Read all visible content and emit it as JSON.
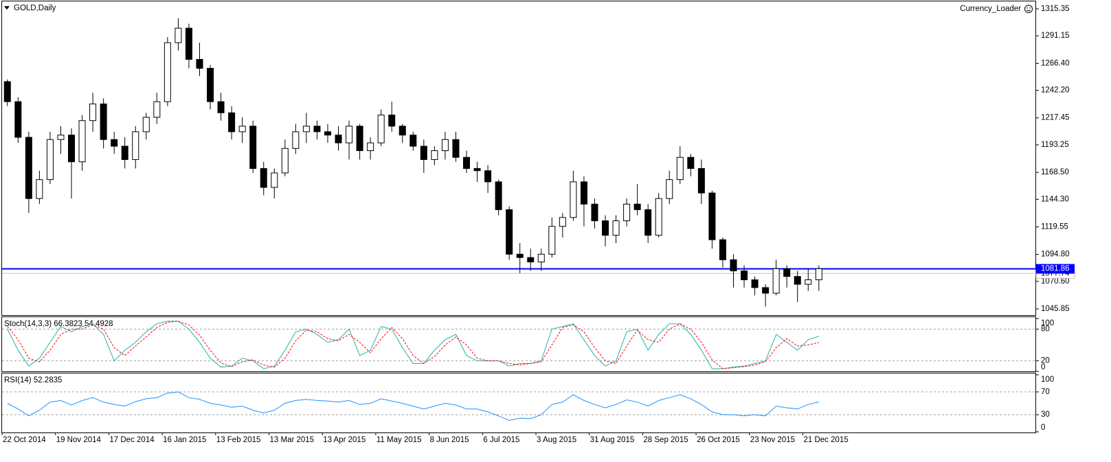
{
  "chart_data": [
    {
      "type": "candlestick",
      "title": "GOLD,Daily",
      "indicator_label": "Currency_Loader",
      "categories": [
        "22 Oct 2014",
        null,
        null,
        null,
        null,
        "19 Nov 2014",
        null,
        null,
        null,
        null,
        "17 Dec 2014",
        null,
        null,
        null,
        null,
        "16 Jan 2015",
        null,
        null,
        null,
        null,
        "13 Feb 2015",
        null,
        null,
        null,
        null,
        "13 Mar 2015",
        null,
        null,
        null,
        null,
        "13 Apr 2015",
        null,
        null,
        null,
        null,
        "11 May 2015",
        null,
        null,
        null,
        null,
        "8 Jun 2015",
        null,
        null,
        null,
        null,
        "6 Jul 2015",
        null,
        null,
        null,
        null,
        "3 Aug 2015",
        null,
        null,
        null,
        null,
        "31 Aug 2015",
        null,
        null,
        null,
        null,
        "28 Sep 2015",
        null,
        null,
        null,
        null,
        "26 Oct 2015",
        null,
        null,
        null,
        null,
        "23 Nov 2015",
        null,
        null,
        null,
        null,
        "21 Dec 2015",
        null
      ],
      "open": [
        1250,
        1232,
        1200,
        1145,
        1162,
        1198,
        1202,
        1178,
        1215,
        1230,
        1198,
        1192,
        1180,
        1205,
        1218,
        1232,
        1285,
        1298,
        1270,
        1262,
        1232,
        1222,
        1205,
        1210,
        1172,
        1155,
        1168,
        1190,
        1205,
        1210,
        1205,
        1202,
        1195,
        1210,
        1188,
        1195,
        1220,
        1210,
        1202,
        1192,
        1180,
        1188,
        1198,
        1182,
        1172,
        1170,
        1160,
        1135,
        1095,
        1092,
        1088,
        1095,
        1120,
        1128,
        1160,
        1140,
        1125,
        1112,
        1125,
        1140,
        1135,
        1112,
        1145,
        1162,
        1182,
        1172,
        1150,
        1108,
        1090,
        1080,
        1072,
        1065,
        1060,
        1082,
        1075,
        1068,
        1072
      ],
      "high": [
        1252,
        1236,
        1205,
        1170,
        1205,
        1210,
        1208,
        1220,
        1240,
        1235,
        1205,
        1200,
        1210,
        1222,
        1240,
        1290,
        1307,
        1302,
        1285,
        1265,
        1240,
        1228,
        1218,
        1215,
        1178,
        1172,
        1198,
        1212,
        1222,
        1215,
        1212,
        1210,
        1215,
        1212,
        1200,
        1225,
        1232,
        1212,
        1205,
        1198,
        1192,
        1205,
        1205,
        1188,
        1178,
        1175,
        1162,
        1138,
        1105,
        1100,
        1100,
        1128,
        1132,
        1170,
        1165,
        1145,
        1130,
        1130,
        1145,
        1158,
        1140,
        1150,
        1170,
        1192,
        1185,
        1180,
        1152,
        1110,
        1095,
        1085,
        1075,
        1068,
        1090,
        1085,
        1080,
        1082,
        1085
      ],
      "low": [
        1228,
        1195,
        1132,
        1140,
        1158,
        1185,
        1145,
        1170,
        1205,
        1190,
        1185,
        1172,
        1172,
        1198,
        1212,
        1228,
        1278,
        1262,
        1255,
        1225,
        1215,
        1198,
        1195,
        1168,
        1148,
        1145,
        1165,
        1185,
        1195,
        1198,
        1195,
        1188,
        1180,
        1180,
        1180,
        1192,
        1205,
        1195,
        1188,
        1168,
        1175,
        1180,
        1178,
        1168,
        1160,
        1150,
        1130,
        1090,
        1078,
        1080,
        1080,
        1092,
        1110,
        1125,
        1120,
        1118,
        1102,
        1105,
        1120,
        1130,
        1105,
        1110,
        1140,
        1158,
        1165,
        1140,
        1100,
        1083,
        1065,
        1065,
        1058,
        1048,
        1058,
        1065,
        1052,
        1062,
        1062
      ],
      "close": [
        1232,
        1200,
        1145,
        1162,
        1198,
        1202,
        1178,
        1215,
        1230,
        1198,
        1192,
        1180,
        1205,
        1218,
        1232,
        1285,
        1298,
        1270,
        1262,
        1232,
        1222,
        1205,
        1210,
        1172,
        1155,
        1168,
        1190,
        1205,
        1210,
        1205,
        1202,
        1195,
        1210,
        1188,
        1195,
        1220,
        1210,
        1202,
        1192,
        1180,
        1188,
        1198,
        1182,
        1172,
        1170,
        1160,
        1135,
        1095,
        1092,
        1088,
        1095,
        1120,
        1128,
        1160,
        1140,
        1125,
        1112,
        1125,
        1140,
        1135,
        1112,
        1145,
        1162,
        1182,
        1172,
        1150,
        1108,
        1090,
        1080,
        1072,
        1065,
        1060,
        1082,
        1075,
        1068,
        1072,
        1082
      ],
      "ylim": [
        1040.3,
        1322.1
      ],
      "yticks": [
        1315.35,
        1291.15,
        {
          "value": 1266.4,
          "label": "1266.40"
        },
        {
          "value": 1242.2,
          "label": "1242.20"
        },
        1217.45,
        1193.25,
        {
          "value": 1168.5,
          "label": "1168.50"
        },
        {
          "value": 1144.3,
          "label": "1144.30"
        },
        1119.55,
        {
          "value": 1094.8,
          "label": "1094.80"
        },
        {
          "value": 1070.6,
          "label": "1070.60"
        },
        1045.85
      ],
      "price_lines": [
        {
          "value": 1077.74,
          "color": "#c0c0c0"
        },
        {
          "value": 1081.86,
          "color": "#0000ff"
        }
      ]
    },
    {
      "type": "line",
      "title": "Stoch(14,3,3) 66.3823 54.4928",
      "series": [
        {
          "color": "#20b2aa",
          "dash": false,
          "values": [
            80,
            40,
            10,
            25,
            55,
            85,
            75,
            85,
            90,
            70,
            20,
            40,
            55,
            75,
            90,
            95,
            95,
            80,
            55,
            25,
            8,
            10,
            25,
            20,
            5,
            10,
            40,
            75,
            80,
            70,
            55,
            60,
            80,
            30,
            40,
            85,
            80,
            45,
            15,
            15,
            40,
            60,
            70,
            30,
            20,
            20,
            20,
            10,
            15,
            15,
            20,
            80,
            85,
            90,
            60,
            30,
            10,
            20,
            75,
            80,
            40,
            70,
            90,
            90,
            70,
            40,
            5,
            5,
            8,
            10,
            15,
            20,
            70,
            55,
            40,
            60,
            66.4
          ]
        },
        {
          "color": "#ff0000",
          "dash": true,
          "values": [
            85,
            60,
            25,
            18,
            40,
            70,
            80,
            80,
            88,
            80,
            45,
            30,
            48,
            65,
            83,
            93,
            95,
            88,
            68,
            40,
            16,
            9,
            18,
            22,
            12,
            8,
            25,
            58,
            78,
            75,
            62,
            58,
            70,
            55,
            35,
            62,
            83,
            62,
            30,
            15,
            28,
            50,
            65,
            50,
            25,
            20,
            20,
            15,
            12,
            15,
            18,
            50,
            83,
            88,
            75,
            45,
            20,
            15,
            48,
            78,
            60,
            55,
            80,
            90,
            80,
            55,
            22,
            5,
            7,
            9,
            12,
            18,
            45,
            62,
            48,
            50,
            54.5
          ]
        }
      ],
      "ylim": [
        0,
        100
      ],
      "yticks": [
        0,
        20,
        80,
        100
      ]
    },
    {
      "type": "line",
      "title": "RSI(14) 52.2835",
      "series": [
        {
          "color": "#1e90ff",
          "dash": false,
          "values": [
            50,
            40,
            28,
            38,
            52,
            55,
            47,
            55,
            60,
            52,
            48,
            45,
            53,
            58,
            60,
            68,
            70,
            60,
            57,
            50,
            47,
            43,
            45,
            38,
            33,
            38,
            50,
            55,
            57,
            55,
            54,
            52,
            55,
            48,
            50,
            58,
            54,
            50,
            45,
            40,
            45,
            50,
            47,
            40,
            40,
            35,
            28,
            20,
            24,
            23,
            30,
            48,
            52,
            65,
            55,
            48,
            42,
            48,
            56,
            52,
            45,
            55,
            60,
            65,
            58,
            48,
            35,
            30,
            30,
            28,
            30,
            28,
            45,
            42,
            40,
            48,
            52.3
          ]
        }
      ],
      "ylim": [
        0,
        100
      ],
      "yticks": [
        0,
        30,
        70,
        100
      ]
    }
  ]
}
